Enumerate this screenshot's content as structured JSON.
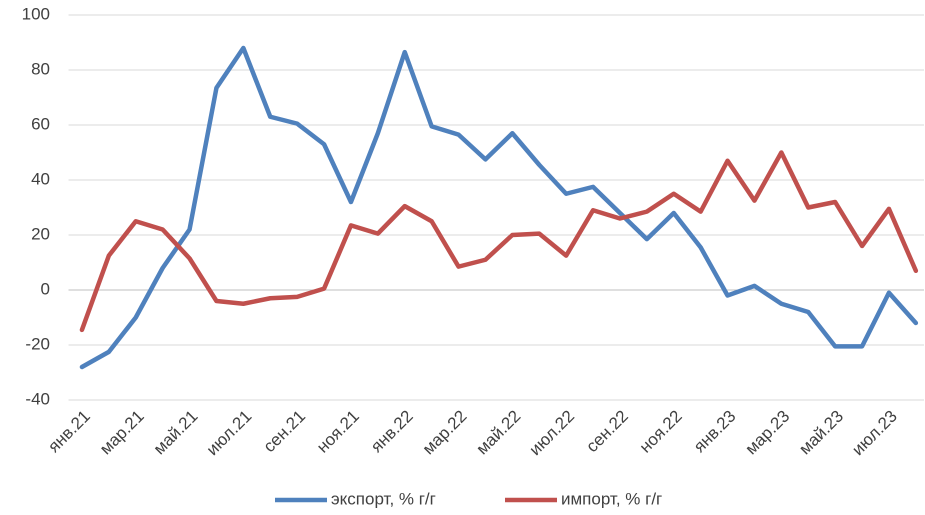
{
  "chart_data": {
    "type": "line",
    "categories": [
      "янв.21",
      null,
      "мар.21",
      null,
      "май.21",
      null,
      "июл.21",
      null,
      "сен.21",
      null,
      "ноя.21",
      null,
      "янв.22",
      null,
      "мар.22",
      null,
      "май.22",
      null,
      "июл.22",
      null,
      "сен.22",
      null,
      "ноя.22",
      null,
      "янв.23",
      null,
      "мар.23",
      null,
      "май.23",
      null,
      "июл.23",
      null
    ],
    "series": [
      {
        "name": "экспорт, % г/г",
        "color": "#4f81bd",
        "values": [
          -28,
          -22.5,
          -10,
          8,
          22,
          73.5,
          88,
          63,
          60.5,
          53,
          32,
          57,
          86.5,
          59.5,
          56.5,
          47.5,
          57,
          45.5,
          35,
          37.5,
          28,
          18.5,
          28,
          15.5,
          -2,
          1.5,
          -5,
          -8,
          -20.5,
          -20.5,
          -1,
          -12
        ]
      },
      {
        "name": "импорт, % г/г",
        "color": "#c0504d",
        "values": [
          -14.5,
          12.5,
          25,
          22,
          11.5,
          -4,
          -5,
          -3,
          -2.5,
          0.5,
          23.5,
          20.5,
          30.5,
          25,
          8.5,
          11,
          20,
          20.5,
          12.5,
          29,
          26,
          28.5,
          35,
          28.5,
          47,
          32.5,
          50,
          30,
          32,
          16,
          29.5,
          7
        ]
      }
    ],
    "ylim": [
      -40,
      100
    ],
    "yticks": [
      -40,
      -20,
      0,
      20,
      40,
      60,
      80,
      100
    ],
    "grid": true,
    "legend": "bottom"
  }
}
